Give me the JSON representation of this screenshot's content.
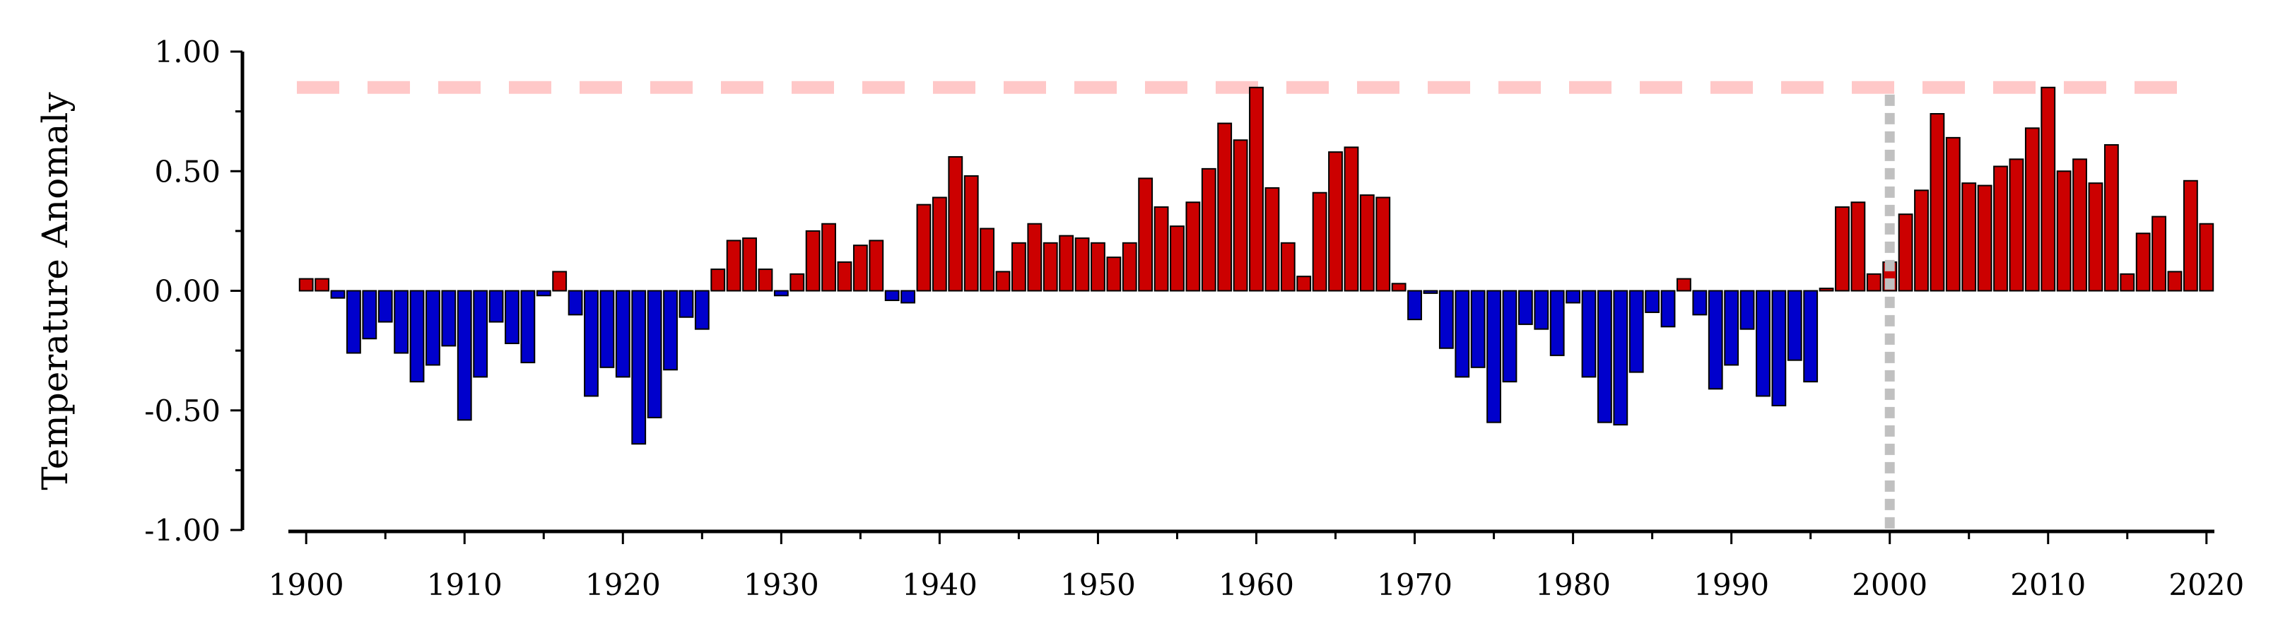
{
  "chart_data": {
    "type": "bar",
    "title": "",
    "xlabel": "",
    "ylabel": "Temperature Anomaly",
    "xlim": [
      1899.5,
      2020.5
    ],
    "ylim": [
      -1.0,
      1.0
    ],
    "x_ticks": [
      1900,
      1910,
      1920,
      1930,
      1940,
      1950,
      1960,
      1970,
      1980,
      1990,
      2000,
      2010,
      2020
    ],
    "y_ticks": [
      1.0,
      0.5,
      0.0,
      -0.5,
      -1.0
    ],
    "y_tick_labels": [
      "1.00",
      "0.50",
      "0.00",
      "-0.50",
      "-1.00"
    ],
    "grid": false,
    "legend": "none",
    "colors": {
      "positive": "#cc0000",
      "negative": "#0000cc",
      "bar_edge": "#000000",
      "threshold": "#ffc8c8",
      "marker_line": "#c0c0c0"
    },
    "threshold_y": 0.85,
    "marker_x": 2000,
    "marker_y_top": 0.82,
    "years": [
      1900,
      1901,
      1902,
      1903,
      1904,
      1905,
      1906,
      1907,
      1908,
      1909,
      1910,
      1911,
      1912,
      1913,
      1914,
      1915,
      1916,
      1917,
      1918,
      1919,
      1920,
      1921,
      1922,
      1923,
      1924,
      1925,
      1926,
      1927,
      1928,
      1929,
      1930,
      1931,
      1932,
      1933,
      1934,
      1935,
      1936,
      1937,
      1938,
      1939,
      1940,
      1941,
      1942,
      1943,
      1944,
      1945,
      1946,
      1947,
      1948,
      1949,
      1950,
      1951,
      1952,
      1953,
      1954,
      1955,
      1956,
      1957,
      1958,
      1959,
      1960,
      1961,
      1962,
      1963,
      1964,
      1965,
      1966,
      1967,
      1968,
      1969,
      1970,
      1971,
      1972,
      1973,
      1974,
      1975,
      1976,
      1977,
      1978,
      1979,
      1980,
      1981,
      1982,
      1983,
      1984,
      1985,
      1986,
      1987,
      1988,
      1989,
      1990,
      1991,
      1992,
      1993,
      1994,
      1995,
      1996,
      1997,
      1998,
      1999,
      2000,
      2001,
      2002,
      2003,
      2004,
      2005,
      2006,
      2007,
      2008,
      2009,
      2010,
      2011,
      2012,
      2013,
      2014,
      2015,
      2016,
      2017,
      2018,
      2019,
      2020
    ],
    "values": [
      0.05,
      0.05,
      -0.03,
      -0.26,
      -0.2,
      -0.13,
      -0.26,
      -0.38,
      -0.31,
      -0.23,
      -0.54,
      -0.36,
      -0.13,
      -0.22,
      -0.3,
      -0.02,
      0.08,
      -0.1,
      -0.44,
      -0.32,
      -0.36,
      -0.64,
      -0.53,
      -0.33,
      -0.11,
      -0.16,
      0.09,
      0.21,
      0.22,
      0.09,
      -0.02,
      0.07,
      0.25,
      0.28,
      0.12,
      0.19,
      0.21,
      -0.04,
      -0.05,
      0.36,
      0.39,
      0.56,
      0.48,
      0.26,
      0.08,
      0.2,
      0.28,
      0.2,
      0.23,
      0.22,
      0.2,
      0.14,
      0.2,
      0.47,
      0.35,
      0.27,
      0.37,
      0.51,
      0.7,
      0.63,
      0.85,
      0.43,
      0.2,
      0.06,
      0.41,
      0.58,
      0.6,
      0.4,
      0.39,
      0.03,
      -0.12,
      -0.01,
      -0.24,
      -0.36,
      -0.32,
      -0.55,
      -0.38,
      -0.14,
      -0.16,
      -0.27,
      -0.05,
      -0.36,
      -0.55,
      -0.56,
      -0.34,
      -0.09,
      -0.15,
      0.05,
      -0.1,
      -0.41,
      -0.31,
      -0.16,
      -0.44,
      -0.48,
      -0.29,
      -0.38,
      0.01,
      0.35,
      0.37,
      0.07,
      0.12,
      0.32,
      0.42,
      0.74,
      0.64,
      0.45,
      0.44,
      0.52,
      0.55,
      0.68,
      0.85,
      0.5,
      0.55,
      0.45,
      0.61,
      0.07,
      0.24,
      0.31,
      0.08,
      0.46,
      0.28
    ]
  }
}
